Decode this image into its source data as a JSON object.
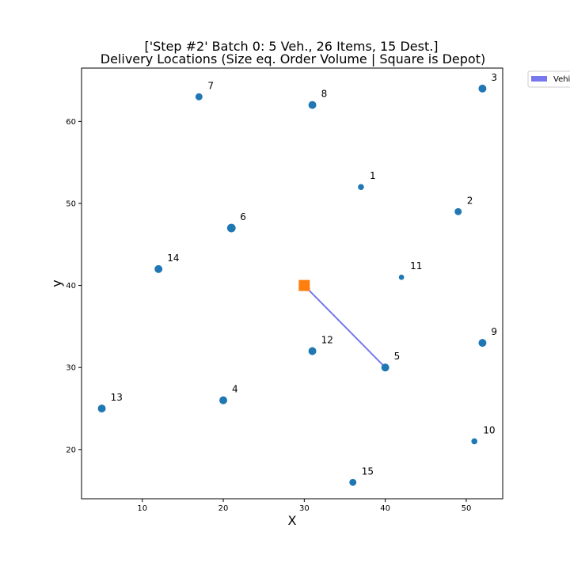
{
  "chart_data": {
    "type": "scatter",
    "title_line1": "['Step #2' Batch 0: 5 Veh., 26 Items, 15 Dest.]",
    "title_line2": "Delivery Locations (Size eq. Order Volume | Square is Depot)",
    "xlabel": "X",
    "ylabel": "y",
    "xlim": [
      2.5,
      54.5
    ],
    "ylim": [
      14,
      66.5
    ],
    "xticks": [
      10,
      20,
      30,
      40,
      50
    ],
    "yticks": [
      20,
      30,
      40,
      50,
      60
    ],
    "point_color": "#1f77b4",
    "depot_color": "#ff7f0e",
    "route_color": "#7777ee",
    "depot": {
      "x": 30,
      "y": 40
    },
    "points": [
      {
        "label": "1",
        "x": 37,
        "y": 52,
        "volume": 1
      },
      {
        "label": "2",
        "x": 49,
        "y": 49,
        "volume": 2
      },
      {
        "label": "3",
        "x": 52,
        "y": 64,
        "volume": 3
      },
      {
        "label": "4",
        "x": 20,
        "y": 26,
        "volume": 3
      },
      {
        "label": "5",
        "x": 40,
        "y": 30,
        "volume": 3
      },
      {
        "label": "6",
        "x": 21,
        "y": 47,
        "volume": 4
      },
      {
        "label": "7",
        "x": 17,
        "y": 63,
        "volume": 2
      },
      {
        "label": "8",
        "x": 31,
        "y": 62,
        "volume": 3
      },
      {
        "label": "9",
        "x": 52,
        "y": 33,
        "volume": 3
      },
      {
        "label": "10",
        "x": 51,
        "y": 21,
        "volume": 1
      },
      {
        "label": "11",
        "x": 42,
        "y": 41,
        "volume": 0.5
      },
      {
        "label": "12",
        "x": 31,
        "y": 32,
        "volume": 3
      },
      {
        "label": "13",
        "x": 5,
        "y": 25,
        "volume": 3
      },
      {
        "label": "14",
        "x": 12,
        "y": 42,
        "volume": 3
      },
      {
        "label": "15",
        "x": 36,
        "y": 16,
        "volume": 2
      }
    ],
    "routes": [
      {
        "from": {
          "x": 40,
          "y": 30
        },
        "to": {
          "x": 30,
          "y": 40
        }
      }
    ],
    "legend": {
      "entry": "Vehi",
      "placement": "outside-top-right"
    }
  }
}
